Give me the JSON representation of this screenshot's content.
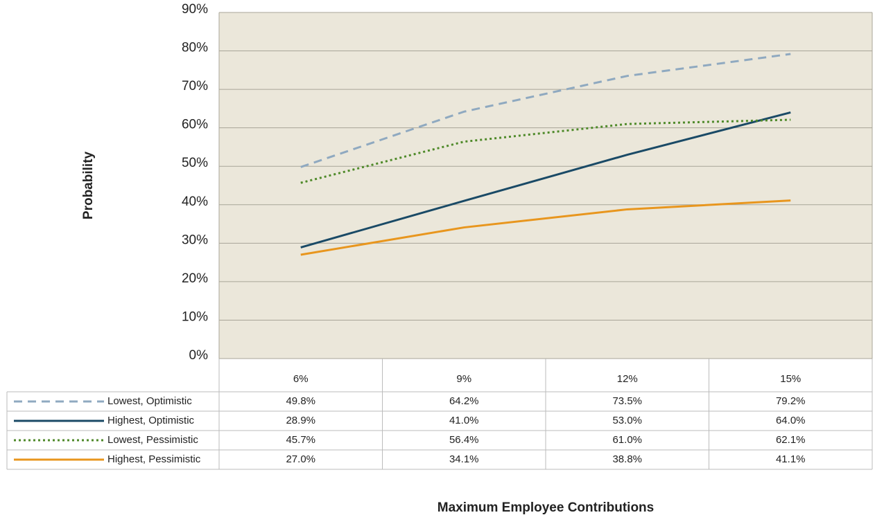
{
  "chart_data": {
    "type": "line",
    "x_label": "Maximum Employee Contributions",
    "y_label": "Probability",
    "categories": [
      "6%",
      "9%",
      "12%",
      "15%"
    ],
    "series": [
      {
        "name": "Lowest, Optimistic",
        "color": "#8fa9c0",
        "dash": "dashed",
        "values": [
          49.8,
          64.2,
          73.5,
          79.2
        ],
        "value_labels": [
          "49.8%",
          "64.2%",
          "73.5%",
          "79.2%"
        ]
      },
      {
        "name": "Highest, Optimistic",
        "color": "#1a4a66",
        "dash": "solid",
        "values": [
          28.9,
          41.0,
          53.0,
          64.0
        ],
        "value_labels": [
          "28.9%",
          "41.0%",
          "53.0%",
          "64.0%"
        ]
      },
      {
        "name": "Lowest, Pessimistic",
        "color": "#4f8a2a",
        "dash": "dotted",
        "values": [
          45.7,
          56.4,
          61.0,
          62.1
        ],
        "value_labels": [
          "45.7%",
          "56.4%",
          "61.0%",
          "62.1%"
        ]
      },
      {
        "name": "Highest, Pessimistic",
        "color": "#e8961e",
        "dash": "solid",
        "values": [
          27.0,
          34.1,
          38.8,
          41.1
        ],
        "value_labels": [
          "27.0%",
          "34.1%",
          "38.8%",
          "41.1%"
        ]
      }
    ],
    "ylim": [
      0,
      90
    ],
    "yticks": [
      {
        "value": 0,
        "label": "0%"
      },
      {
        "value": 10,
        "label": "10%"
      },
      {
        "value": 20,
        "label": "20%"
      },
      {
        "value": 30,
        "label": "30%"
      },
      {
        "value": 40,
        "label": "40%"
      },
      {
        "value": 50,
        "label": "50%"
      },
      {
        "value": 60,
        "label": "60%"
      },
      {
        "value": 70,
        "label": "70%"
      },
      {
        "value": 80,
        "label": "80%"
      },
      {
        "value": 90,
        "label": "90%"
      }
    ],
    "grid": true,
    "plot_background": "#ebe7da"
  }
}
